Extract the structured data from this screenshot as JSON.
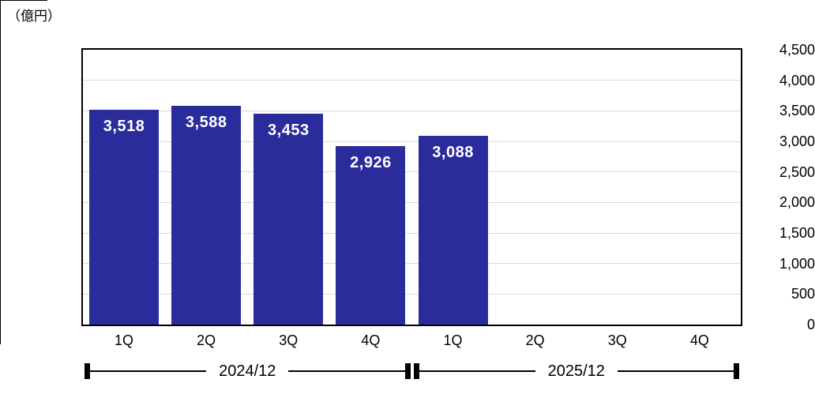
{
  "chart_data": {
    "type": "bar",
    "title": "",
    "unit_label": "（億円）",
    "categories": [
      "1Q",
      "2Q",
      "3Q",
      "4Q",
      "1Q",
      "2Q",
      "3Q",
      "4Q"
    ],
    "values": [
      3518,
      3588,
      3453,
      2926,
      3088,
      null,
      null,
      null
    ],
    "value_labels": [
      "3,518",
      "3,588",
      "3,453",
      "2,926",
      "3,088",
      "",
      "",
      ""
    ],
    "groups": [
      {
        "label": "2024/12",
        "from": 0,
        "to": 3
      },
      {
        "label": "2025/12",
        "from": 4,
        "to": 7
      }
    ],
    "xlabel": "",
    "ylabel": "",
    "ylim": [
      0,
      4500
    ],
    "ytick_step": 500,
    "ytick_labels": [
      "0",
      "500",
      "1,000",
      "1,500",
      "2,000",
      "2,500",
      "3,000",
      "3,500",
      "4,000",
      "4,500"
    ],
    "grid": true,
    "legend": null,
    "colors": {
      "bar": "#2A2C9C",
      "grid": "#D9D9D9",
      "axis_border": "#000000",
      "value_label": "#FFFFFF",
      "text": "#000000"
    }
  }
}
